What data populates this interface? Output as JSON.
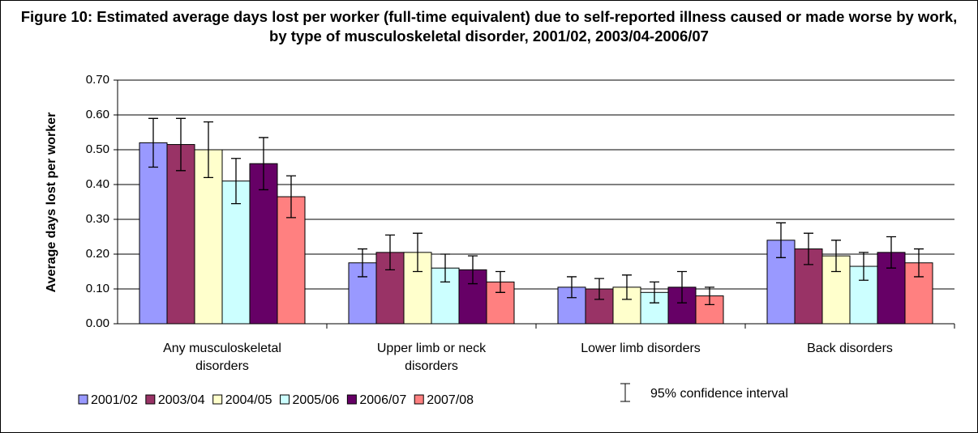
{
  "chart_data": {
    "type": "bar",
    "title": "Figure 10:  Estimated average days lost per worker (full-time equivalent) due to self-reported illness caused or made worse by work, by type of musculoskeletal disorder, 2001/02, 2003/04-2006/07",
    "y_label": "Average days lost per worker",
    "categories": [
      "Any musculoskeletal disorders",
      "Upper limb or neck disorders",
      "Lower limb disorders",
      "Back disorders"
    ],
    "series": [
      {
        "name": "2001/02",
        "color": "#9999ff",
        "values": [
          0.52,
          0.175,
          0.105,
          0.24
        ],
        "errors": [
          0.07,
          0.04,
          0.03,
          0.05
        ]
      },
      {
        "name": "2003/04",
        "color": "#993366",
        "values": [
          0.515,
          0.205,
          0.1,
          0.215
        ],
        "errors": [
          0.075,
          0.05,
          0.03,
          0.045
        ]
      },
      {
        "name": "2004/05",
        "color": "#ffffcc",
        "values": [
          0.5,
          0.205,
          0.105,
          0.195
        ],
        "errors": [
          0.08,
          0.055,
          0.035,
          0.045
        ]
      },
      {
        "name": "2005/06",
        "color": "#ccffff",
        "values": [
          0.41,
          0.16,
          0.09,
          0.165
        ],
        "errors": [
          0.065,
          0.04,
          0.03,
          0.04
        ]
      },
      {
        "name": "2006/07",
        "color": "#660066",
        "values": [
          0.46,
          0.155,
          0.105,
          0.205
        ],
        "errors": [
          0.075,
          0.04,
          0.045,
          0.045
        ]
      },
      {
        "name": "2007/08",
        "color": "#ff8080",
        "values": [
          0.365,
          0.12,
          0.08,
          0.175
        ],
        "errors": [
          0.06,
          0.03,
          0.025,
          0.04
        ]
      }
    ],
    "ci_label": "95% confidence interval",
    "ylim": [
      0,
      0.7
    ],
    "yticks": [
      {
        "value": 0,
        "label": "0.00"
      },
      {
        "value": 0.1,
        "label": "0.10"
      },
      {
        "value": 0.2,
        "label": "0.20"
      },
      {
        "value": 0.3,
        "label": "0.30"
      },
      {
        "value": 0.4,
        "label": "0.40"
      },
      {
        "value": 0.5,
        "label": "0.50"
      },
      {
        "value": 0.6,
        "label": "0.60"
      },
      {
        "value": 0.7,
        "label": "0.70"
      }
    ],
    "grid": true
  }
}
